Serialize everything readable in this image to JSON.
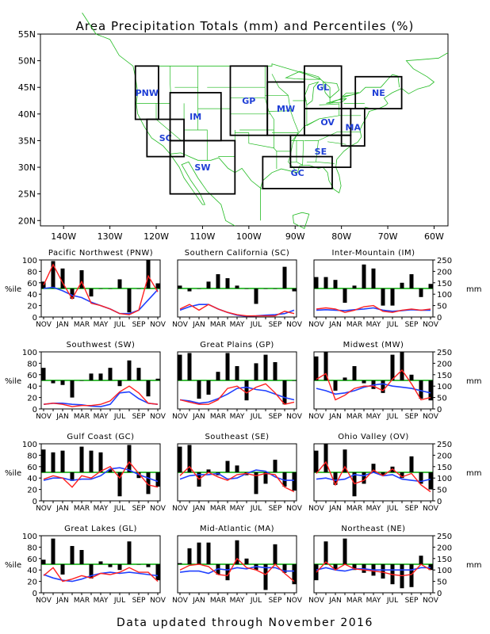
{
  "title": "Area Precipitation Totals (mm) and Percentiles (%)",
  "footer": "Data updated through November 2016",
  "colors": {
    "map_lines": "#22bb22",
    "region_box": "#000000",
    "region_label": "#1f3fd6",
    "bar": "#000000",
    "percentile_line": "#ff2020",
    "normal_line": "#2040ff",
    "fifty_line": "#00aa00"
  },
  "map": {
    "lat_labels": [
      "55N",
      "50N",
      "45N",
      "40N",
      "35N",
      "30N",
      "25N",
      "20N"
    ],
    "lon_labels": [
      "140W",
      "130W",
      "120W",
      "110W",
      "100W",
      "90W",
      "80W",
      "70W",
      "60W"
    ],
    "regions": [
      {
        "code": "PNW",
        "lon0": -124.5,
        "lon1": -119.5,
        "lat0": 39,
        "lat1": 49
      },
      {
        "code": "SC",
        "lon0": -122,
        "lon1": -114,
        "lat0": 32,
        "lat1": 39
      },
      {
        "code": "IM",
        "lon0": -117,
        "lon1": -106,
        "lat0": 35,
        "lat1": 44
      },
      {
        "code": "SW",
        "lon0": -117,
        "lon1": -103,
        "lat0": 25,
        "lat1": 35
      },
      {
        "code": "GP",
        "lon0": -104,
        "lon1": -96,
        "lat0": 36,
        "lat1": 49
      },
      {
        "code": "MW",
        "lon0": -96,
        "lon1": -88,
        "lat0": 36,
        "lat1": 46
      },
      {
        "code": "GL",
        "lon0": -88,
        "lon1": -80,
        "lat0": 41,
        "lat1": 49
      },
      {
        "code": "NE",
        "lon0": -77,
        "lon1": -67,
        "lat0": 41,
        "lat1": 47
      },
      {
        "code": "OV",
        "lon0": -88,
        "lon1": -78,
        "lat0": 36,
        "lat1": 41
      },
      {
        "code": "MA",
        "lon0": -80,
        "lon1": -75,
        "lat0": 34,
        "lat1": 41
      },
      {
        "code": "SE",
        "lon0": -91,
        "lon1": -78,
        "lat0": 30,
        "lat1": 36
      },
      {
        "code": "GC",
        "lon0": -97,
        "lon1": -82,
        "lat0": 26,
        "lat1": 32
      }
    ]
  },
  "axes": {
    "percentile_label": "%ile",
    "mm_label": "mm",
    "pct_ticks": [
      "0",
      "20",
      "40",
      "60",
      "80",
      "100"
    ],
    "mm_ticks": [
      "0",
      "50",
      "100",
      "150",
      "200",
      "250"
    ],
    "month_ticks": [
      "NOV",
      "JAN",
      "MAR",
      "MAY",
      "JUL",
      "SEP",
      "NOV"
    ]
  },
  "chart_data": [
    {
      "type": "bar",
      "title": "Pacific Northwest (PNW)",
      "categories": [
        "NOV",
        "DEC",
        "JAN",
        "FEB",
        "MAR",
        "APR",
        "MAY",
        "JUN",
        "JUL",
        "AUG",
        "SEP",
        "OCT",
        "NOV"
      ],
      "ylim": [
        0,
        100
      ],
      "y2lim": [
        0,
        250
      ],
      "series": [
        {
          "kind": "percentile_bars",
          "values": [
            62,
            98,
            85,
            32,
            82,
            36,
            50,
            50,
            66,
            8,
            50,
            100,
            59
          ]
        },
        {
          "kind": "precip_mm_line",
          "values": [
            140,
            230,
            150,
            80,
            155,
            60,
            50,
            35,
            15,
            10,
            30,
            180,
            110
          ]
        },
        {
          "kind": "normal_mm_line",
          "values": [
            125,
            130,
            115,
            95,
            85,
            65,
            50,
            35,
            15,
            15,
            30,
            75,
            120
          ]
        }
      ]
    },
    {
      "type": "bar",
      "title": "Southern California (SC)",
      "categories": [
        "NOV",
        "DEC",
        "JAN",
        "FEB",
        "MAR",
        "APR",
        "MAY",
        "JUN",
        "JUL",
        "AUG",
        "SEP",
        "OCT",
        "NOV"
      ],
      "ylim": [
        0,
        100
      ],
      "y2lim": [
        0,
        250
      ],
      "series": [
        {
          "kind": "percentile_bars",
          "values": [
            55,
            45,
            50,
            62,
            75,
            68,
            55,
            50,
            23,
            50,
            50,
            88,
            45
          ]
        },
        {
          "kind": "precip_mm_line",
          "values": [
            35,
            55,
            30,
            55,
            35,
            20,
            10,
            5,
            5,
            5,
            5,
            25,
            15
          ]
        },
        {
          "kind": "normal_mm_line",
          "values": [
            30,
            45,
            55,
            55,
            35,
            20,
            8,
            3,
            5,
            8,
            10,
            15,
            30
          ]
        }
      ]
    },
    {
      "type": "bar",
      "title": "Inter-Mountain (IM)",
      "categories": [
        "NOV",
        "DEC",
        "JAN",
        "FEB",
        "MAR",
        "APR",
        "MAY",
        "JUN",
        "JUL",
        "AUG",
        "SEP",
        "OCT",
        "NOV"
      ],
      "ylim": [
        0,
        100
      ],
      "y2lim": [
        0,
        250
      ],
      "series": [
        {
          "kind": "percentile_bars",
          "values": [
            70,
            70,
            65,
            25,
            55,
            92,
            85,
            20,
            20,
            60,
            75,
            35,
            58
          ]
        },
        {
          "kind": "precip_mm_line",
          "values": [
            35,
            40,
            35,
            20,
            30,
            45,
            50,
            25,
            20,
            30,
            35,
            30,
            35
          ]
        },
        {
          "kind": "normal_mm_line",
          "values": [
            30,
            32,
            30,
            28,
            32,
            35,
            40,
            30,
            25,
            28,
            32,
            30,
            30
          ]
        }
      ]
    },
    {
      "type": "bar",
      "title": "Southwest (SW)",
      "categories": [
        "NOV",
        "DEC",
        "JAN",
        "FEB",
        "MAR",
        "APR",
        "MAY",
        "JUN",
        "JUL",
        "AUG",
        "SEP",
        "OCT",
        "NOV"
      ],
      "ylim": [
        0,
        100
      ],
      "y2lim": [
        0,
        250
      ],
      "series": [
        {
          "kind": "percentile_bars",
          "values": [
            72,
            45,
            42,
            20,
            50,
            62,
            62,
            72,
            40,
            85,
            72,
            22,
            53
          ]
        },
        {
          "kind": "precip_mm_line",
          "values": [
            20,
            25,
            20,
            10,
            15,
            15,
            20,
            35,
            75,
            100,
            70,
            25,
            20
          ]
        },
        {
          "kind": "normal_mm_line",
          "values": [
            20,
            25,
            25,
            20,
            18,
            12,
            10,
            20,
            70,
            75,
            45,
            25,
            20
          ]
        }
      ]
    },
    {
      "type": "bar",
      "title": "Great Plains (GP)",
      "categories": [
        "NOV",
        "DEC",
        "JAN",
        "FEB",
        "MAR",
        "APR",
        "MAY",
        "JUN",
        "JUL",
        "AUG",
        "SEP",
        "OCT",
        "NOV"
      ],
      "ylim": [
        0,
        100
      ],
      "y2lim": [
        0,
        250
      ],
      "series": [
        {
          "kind": "percentile_bars",
          "values": [
            95,
            98,
            18,
            25,
            65,
            98,
            75,
            15,
            80,
            95,
            82,
            8,
            50
          ]
        },
        {
          "kind": "precip_mm_line",
          "values": [
            40,
            30,
            20,
            20,
            40,
            90,
            100,
            70,
            95,
            110,
            70,
            20,
            30
          ]
        },
        {
          "kind": "normal_mm_line",
          "values": [
            40,
            35,
            25,
            30,
            45,
            65,
            90,
            95,
            85,
            80,
            65,
            50,
            40
          ]
        }
      ]
    },
    {
      "type": "bar",
      "title": "Midwest (MW)",
      "categories": [
        "NOV",
        "DEC",
        "JAN",
        "FEB",
        "MAR",
        "APR",
        "MAY",
        "JUN",
        "JUL",
        "AUG",
        "SEP",
        "OCT",
        "NOV"
      ],
      "ylim": [
        0,
        100
      ],
      "y2lim": [
        0,
        250
      ],
      "series": [
        {
          "kind": "percentile_bars",
          "values": [
            92,
            100,
            32,
            55,
            75,
            45,
            35,
            28,
            95,
            100,
            60,
            18,
            15
          ]
        },
        {
          "kind": "precip_mm_line",
          "values": [
            130,
            155,
            40,
            60,
            90,
            100,
            100,
            80,
            130,
            170,
            110,
            40,
            50
          ]
        },
        {
          "kind": "normal_mm_line",
          "values": [
            90,
            80,
            65,
            70,
            80,
            95,
            105,
            110,
            100,
            95,
            90,
            80,
            70
          ]
        }
      ]
    },
    {
      "type": "bar",
      "title": "Gulf Coast (GC)",
      "categories": [
        "NOV",
        "DEC",
        "JAN",
        "FEB",
        "MAR",
        "APR",
        "MAY",
        "JUN",
        "JUL",
        "AUG",
        "SEP",
        "OCT",
        "NOV"
      ],
      "ylim": [
        0,
        100
      ],
      "y2lim": [
        0,
        250
      ],
      "series": [
        {
          "kind": "percentile_bars",
          "values": [
            90,
            85,
            88,
            35,
            95,
            88,
            85,
            55,
            8,
            98,
            40,
            12,
            25
          ]
        },
        {
          "kind": "precip_mm_line",
          "values": [
            95,
            110,
            100,
            60,
            110,
            100,
            130,
            150,
            100,
            170,
            120,
            70,
            60
          ]
        },
        {
          "kind": "normal_mm_line",
          "values": [
            90,
            100,
            100,
            90,
            95,
            95,
            110,
            140,
            145,
            135,
            115,
            100,
            85
          ]
        }
      ]
    },
    {
      "type": "bar",
      "title": "Southeast (SE)",
      "categories": [
        "NOV",
        "DEC",
        "JAN",
        "FEB",
        "MAR",
        "APR",
        "MAY",
        "JUN",
        "JUL",
        "AUG",
        "SEP",
        "OCT",
        "NOV"
      ],
      "ylim": [
        0,
        100
      ],
      "y2lim": [
        0,
        250
      ],
      "series": [
        {
          "kind": "percentile_bars",
          "values": [
            95,
            98,
            25,
            55,
            45,
            70,
            62,
            45,
            12,
            30,
            72,
            25,
            18
          ]
        },
        {
          "kind": "precip_mm_line",
          "values": [
            110,
            150,
            95,
            125,
            105,
            90,
            115,
            120,
            110,
            120,
            115,
            60,
            40
          ]
        },
        {
          "kind": "normal_mm_line",
          "values": [
            95,
            110,
            115,
            115,
            120,
            95,
            100,
            120,
            135,
            130,
            105,
            90,
            90
          ]
        }
      ]
    },
    {
      "type": "bar",
      "title": "Ohio Valley (OV)",
      "categories": [
        "NOV",
        "DEC",
        "JAN",
        "FEB",
        "MAR",
        "APR",
        "MAY",
        "JUN",
        "JUL",
        "AUG",
        "SEP",
        "OCT",
        "NOV"
      ],
      "ylim": [
        0,
        100
      ],
      "y2lim": [
        0,
        250
      ],
      "series": [
        {
          "kind": "percentile_bars",
          "values": [
            88,
            100,
            28,
            90,
            8,
            30,
            65,
            45,
            60,
            40,
            78,
            30,
            20
          ]
        },
        {
          "kind": "precip_mm_line",
          "values": [
            120,
            170,
            70,
            150,
            75,
            90,
            135,
            110,
            140,
            105,
            120,
            70,
            40
          ]
        },
        {
          "kind": "normal_mm_line",
          "values": [
            95,
            100,
            90,
            95,
            115,
            110,
            125,
            110,
            115,
            95,
            90,
            85,
            95
          ]
        }
      ]
    },
    {
      "type": "bar",
      "title": "Great Lakes (GL)",
      "categories": [
        "NOV",
        "DEC",
        "JAN",
        "FEB",
        "MAR",
        "APR",
        "MAY",
        "JUN",
        "JUL",
        "AUG",
        "SEP",
        "OCT",
        "NOV"
      ],
      "ylim": [
        0,
        100
      ],
      "y2lim": [
        0,
        250
      ],
      "series": [
        {
          "kind": "percentile_bars",
          "values": [
            58,
            95,
            32,
            82,
            75,
            25,
            55,
            45,
            40,
            90,
            50,
            45,
            22
          ]
        },
        {
          "kind": "precip_mm_line",
          "values": [
            75,
            110,
            50,
            60,
            75,
            65,
            85,
            80,
            90,
            110,
            90,
            90,
            50
          ]
        },
        {
          "kind": "normal_mm_line",
          "values": [
            80,
            65,
            55,
            50,
            60,
            75,
            85,
            90,
            85,
            90,
            85,
            80,
            75
          ]
        }
      ]
    },
    {
      "type": "bar",
      "title": "Mid-Atlantic (MA)",
      "categories": [
        "NOV",
        "DEC",
        "JAN",
        "FEB",
        "MAR",
        "APR",
        "MAY",
        "JUN",
        "JUL",
        "AUG",
        "SEP",
        "OCT",
        "NOV"
      ],
      "ylim": [
        0,
        100
      ],
      "y2lim": [
        0,
        250
      ],
      "series": [
        {
          "kind": "percentile_bars",
          "values": [
            52,
            78,
            88,
            88,
            32,
            22,
            92,
            60,
            40,
            5,
            85,
            35,
            15
          ]
        },
        {
          "kind": "precip_mm_line",
          "values": [
            100,
            120,
            125,
            115,
            80,
            75,
            150,
            110,
            100,
            80,
            125,
            85,
            50
          ]
        },
        {
          "kind": "normal_mm_line",
          "values": [
            90,
            95,
            95,
            85,
            105,
            100,
            110,
            105,
            115,
            110,
            110,
            95,
            95
          ]
        }
      ]
    },
    {
      "type": "bar",
      "title": "Northeast (NE)",
      "categories": [
        "NOV",
        "DEC",
        "JAN",
        "FEB",
        "MAR",
        "APR",
        "MAY",
        "JUN",
        "JUL",
        "AUG",
        "SEP",
        "OCT",
        "NOV"
      ],
      "ylim": [
        0,
        100
      ],
      "y2lim": [
        0,
        250
      ],
      "series": [
        {
          "kind": "percentile_bars",
          "values": [
            22,
            90,
            40,
            95,
            40,
            35,
            30,
            25,
            15,
            8,
            10,
            65,
            40
          ]
        },
        {
          "kind": "precip_mm_line",
          "values": [
            90,
            135,
            100,
            125,
            105,
            100,
            95,
            90,
            80,
            75,
            80,
            125,
            100
          ]
        },
        {
          "kind": "normal_mm_line",
          "values": [
            100,
            110,
            100,
            95,
            105,
            105,
            100,
            100,
            100,
            100,
            100,
            110,
            110
          ]
        }
      ]
    }
  ]
}
